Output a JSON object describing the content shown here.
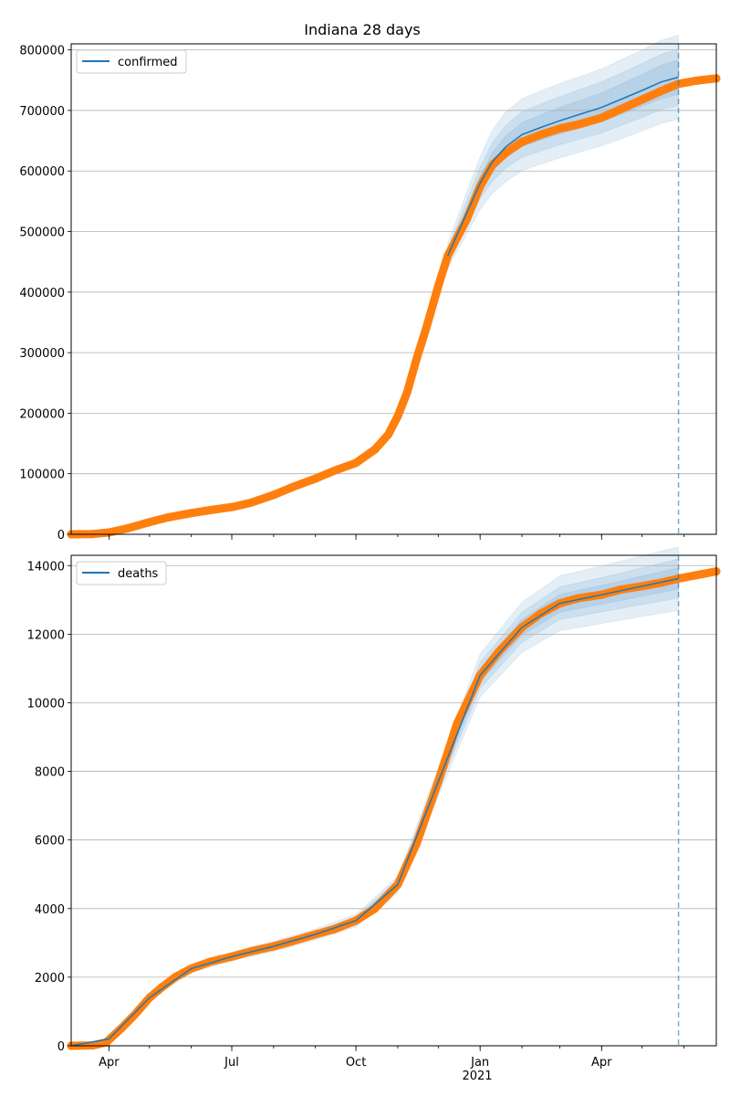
{
  "title": "Indiana 28 days",
  "colors": {
    "forecast": "#1f77b4",
    "observed": "#ff7f0e",
    "band": "#1f77b4",
    "vline": "#1f77b4"
  },
  "x_axis": {
    "tick_labels": [
      "Apr",
      "Jul",
      "Oct",
      "Jan",
      "Apr"
    ],
    "tick_dates": [
      "2020-04-01",
      "2020-07-01",
      "2020-10-01",
      "2021-01-01",
      "2021-04-01"
    ],
    "year_label": "2021",
    "range": [
      "2020-03-04",
      "2021-06-25"
    ],
    "forecast_start": "2021-05-28"
  },
  "chart_data": [
    {
      "type": "line",
      "legend": "confirmed",
      "legend_position": "top-left",
      "grid": "horizontal",
      "ylim": [
        0,
        810000
      ],
      "yticks": [
        0,
        100000,
        200000,
        300000,
        400000,
        500000,
        600000,
        700000,
        800000
      ],
      "observed": {
        "x": [
          "2020-03-04",
          "2020-03-20",
          "2020-04-01",
          "2020-04-15",
          "2020-05-01",
          "2020-05-15",
          "2020-06-01",
          "2020-06-15",
          "2020-07-01",
          "2020-07-15",
          "2020-08-01",
          "2020-08-15",
          "2020-09-01",
          "2020-09-15",
          "2020-10-01",
          "2020-10-15",
          "2020-10-25",
          "2020-11-01",
          "2020-11-08",
          "2020-11-15",
          "2020-11-22",
          "2020-12-01",
          "2020-12-08",
          "2020-12-15",
          "2020-12-22",
          "2021-01-01",
          "2021-01-10",
          "2021-01-20",
          "2021-02-01",
          "2021-02-15",
          "2021-03-01",
          "2021-03-15",
          "2021-04-01",
          "2021-04-15",
          "2021-05-01",
          "2021-05-15",
          "2021-05-28",
          "2021-06-10",
          "2021-06-25"
        ],
        "y": [
          0,
          500,
          3000,
          10000,
          20000,
          28000,
          35000,
          40000,
          45000,
          52000,
          65000,
          78000,
          92000,
          105000,
          118000,
          140000,
          165000,
          195000,
          235000,
          290000,
          340000,
          410000,
          460000,
          490000,
          520000,
          575000,
          610000,
          630000,
          648000,
          660000,
          670000,
          677000,
          688000,
          702000,
          718000,
          732000,
          744000,
          749000,
          753000
        ]
      },
      "forecast": {
        "x": [
          "2020-12-08",
          "2020-12-15",
          "2020-12-22",
          "2021-01-01",
          "2021-01-10",
          "2021-01-20",
          "2021-02-01",
          "2021-02-15",
          "2021-03-01",
          "2021-03-15",
          "2021-04-01",
          "2021-04-15",
          "2021-05-01",
          "2021-05-15",
          "2021-05-28"
        ],
        "y": [
          460000,
          495000,
          530000,
          580000,
          615000,
          640000,
          660000,
          672000,
          683000,
          693000,
          705000,
          718000,
          733000,
          747000,
          755000
        ],
        "band_inner": [
          0.01,
          0.012,
          0.015,
          0.02,
          0.025,
          0.028,
          0.03,
          0.031,
          0.032,
          0.033,
          0.034,
          0.035,
          0.036,
          0.037,
          0.038
        ],
        "band_mid": [
          0.025,
          0.03,
          0.038,
          0.045,
          0.052,
          0.055,
          0.057,
          0.058,
          0.058,
          0.059,
          0.06,
          0.06,
          0.061,
          0.061,
          0.062
        ],
        "band_outer": [
          0.045,
          0.055,
          0.065,
          0.075,
          0.085,
          0.09,
          0.09,
          0.09,
          0.09,
          0.09,
          0.09,
          0.091,
          0.091,
          0.092,
          0.092
        ]
      }
    },
    {
      "type": "line",
      "legend": "deaths",
      "legend_position": "top-left",
      "grid": "horizontal",
      "ylim": [
        0,
        14300
      ],
      "yticks": [
        0,
        2000,
        4000,
        6000,
        8000,
        10000,
        12000,
        14000
      ],
      "observed": {
        "x": [
          "2020-03-04",
          "2020-03-20",
          "2020-03-30",
          "2020-04-10",
          "2020-04-20",
          "2020-05-01",
          "2020-05-10",
          "2020-05-20",
          "2020-06-01",
          "2020-06-15",
          "2020-07-01",
          "2020-07-15",
          "2020-08-01",
          "2020-08-15",
          "2020-09-01",
          "2020-09-15",
          "2020-10-01",
          "2020-10-15",
          "2020-11-01",
          "2020-11-15",
          "2020-12-01",
          "2020-12-15",
          "2021-01-01",
          "2021-01-15",
          "2021-02-01",
          "2021-02-15",
          "2021-03-01",
          "2021-03-15",
          "2021-04-01",
          "2021-04-15",
          "2021-05-01",
          "2021-05-15",
          "2021-05-28",
          "2021-06-10",
          "2021-06-25"
        ],
        "y": [
          0,
          10,
          100,
          500,
          900,
          1400,
          1700,
          2000,
          2250,
          2450,
          2600,
          2750,
          2900,
          3050,
          3250,
          3400,
          3650,
          4000,
          4700,
          5900,
          7700,
          9400,
          10800,
          11500,
          12200,
          12600,
          12900,
          13050,
          13150,
          13300,
          13400,
          13500,
          13620,
          13720,
          13830
        ]
      },
      "forecast": {
        "x": [
          "2020-03-04",
          "2020-04-01",
          "2020-05-01",
          "2020-06-01",
          "2020-07-01",
          "2020-08-01",
          "2020-09-01",
          "2020-10-01",
          "2020-11-01",
          "2020-12-01",
          "2021-01-01",
          "2021-02-01",
          "2021-03-01",
          "2021-04-01",
          "2021-05-01",
          "2021-05-28"
        ],
        "y": [
          0,
          200,
          1400,
          2250,
          2600,
          2900,
          3250,
          3650,
          4700,
          7700,
          10800,
          12200,
          12900,
          13150,
          13400,
          13620
        ],
        "band_inner": [
          0.015,
          0.015,
          0.015,
          0.015,
          0.015,
          0.015,
          0.015,
          0.015,
          0.015,
          0.017,
          0.018,
          0.019,
          0.02,
          0.021,
          0.022,
          0.023
        ],
        "band_mid": [
          0.03,
          0.03,
          0.03,
          0.03,
          0.03,
          0.03,
          0.03,
          0.03,
          0.03,
          0.033,
          0.035,
          0.036,
          0.037,
          0.038,
          0.04,
          0.042
        ],
        "band_outer": [
          0.05,
          0.05,
          0.05,
          0.05,
          0.05,
          0.05,
          0.05,
          0.05,
          0.05,
          0.055,
          0.058,
          0.06,
          0.062,
          0.064,
          0.066,
          0.068
        ]
      }
    }
  ]
}
